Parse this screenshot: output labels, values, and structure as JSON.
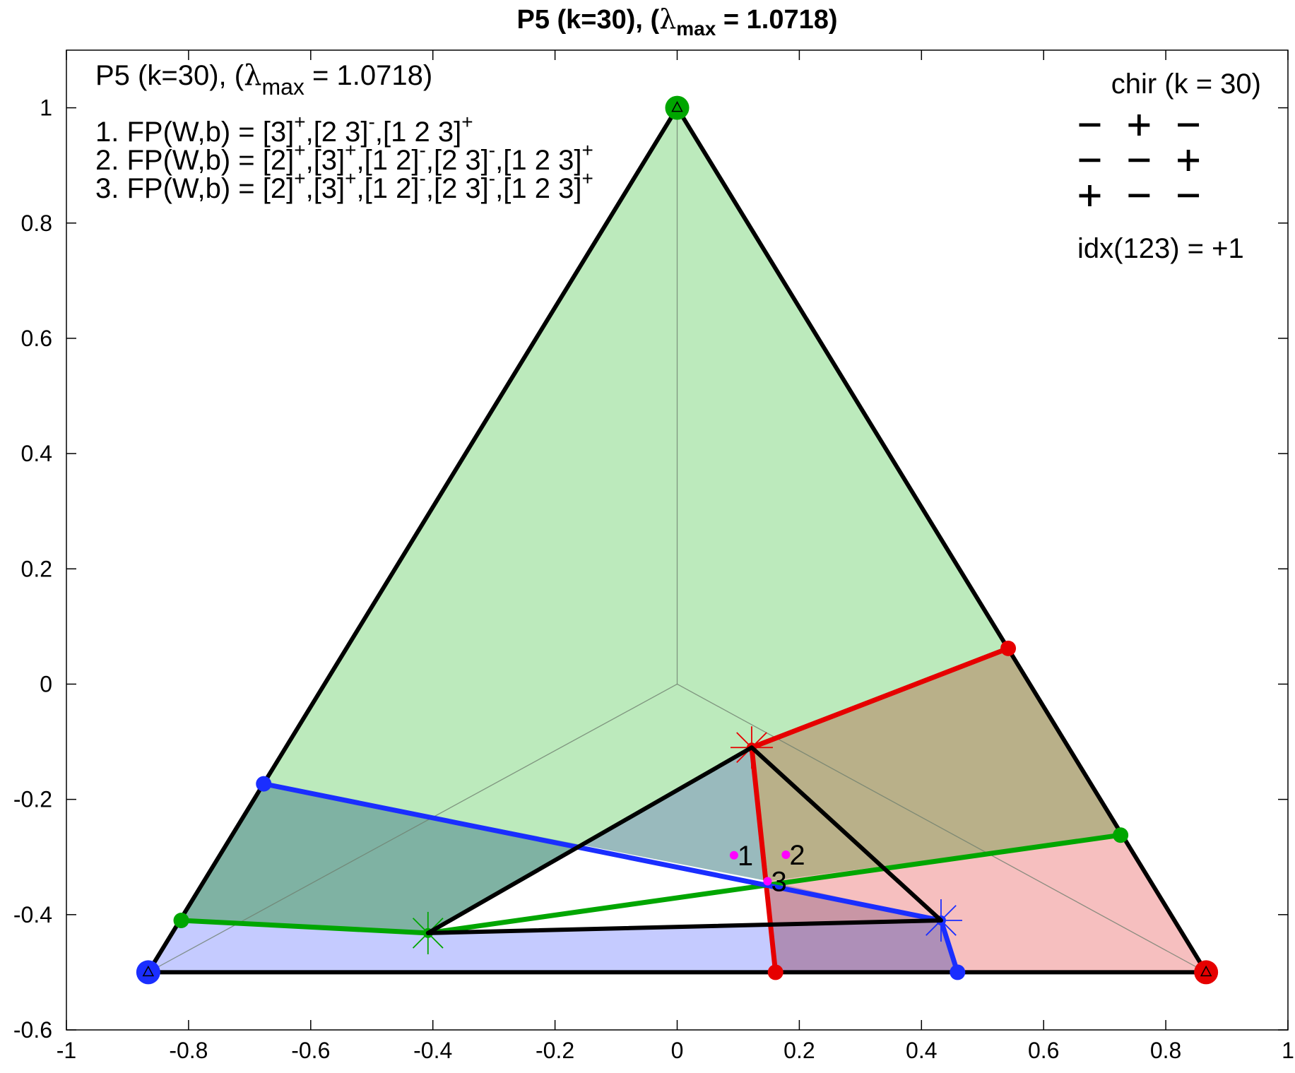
{
  "chart_data": {
    "type": "scatter",
    "title": {
      "main": "P5 (k=30),  (",
      "lambda": "λ",
      "sub": "max",
      "rest": " = 1.0718)"
    },
    "xlabel": "",
    "ylabel": "",
    "xlim": [
      -1,
      1
    ],
    "ylim": [
      -0.6,
      1.1
    ],
    "grid": false,
    "xticks": [
      -1,
      -0.8,
      -0.6,
      -0.4,
      -0.2,
      0,
      0.2,
      0.4,
      0.6,
      0.8,
      1
    ],
    "yticks": [
      -0.6,
      -0.4,
      -0.2,
      0,
      0.2,
      0.4,
      0.6,
      0.8,
      1
    ],
    "xtick_labels": [
      "-1",
      "-0.8",
      "-0.6",
      "-0.4",
      "-0.2",
      "0",
      "0.2",
      "0.4",
      "0.6",
      "0.8",
      "1"
    ],
    "ytick_labels": [
      "-0.6",
      "-0.4",
      "-0.2",
      "0",
      "0.2",
      "0.4",
      "0.6",
      "0.8",
      "1"
    ],
    "simplex_vertices": [
      {
        "x": -0.866,
        "y": -0.5,
        "color": "#1a2eff"
      },
      {
        "x": 0.866,
        "y": -0.5,
        "color": "#e60000"
      },
      {
        "x": 0.0,
        "y": 1.0,
        "color": "#00a600"
      }
    ],
    "regions": [
      {
        "name": "green-region",
        "color": "#7ed67e",
        "opacity": 0.52,
        "points": [
          [
            -0.866,
            -0.5
          ],
          [
            0,
            1
          ],
          [
            0.542,
            0.062
          ],
          [
            0.122,
            -0.11
          ],
          [
            -0.408,
            -0.432
          ],
          [
            -0.812,
            -0.41
          ]
        ]
      },
      {
        "name": "olive-region",
        "color": "#8a7b3a",
        "opacity": 0.6,
        "points": [
          [
            0.122,
            -0.11
          ],
          [
            0.542,
            0.062
          ],
          [
            0.726,
            -0.262
          ],
          [
            0.15,
            -0.342
          ]
        ]
      },
      {
        "name": "pink-region",
        "color": "#ef8a8a",
        "opacity": 0.55,
        "points": [
          [
            0.15,
            -0.342
          ],
          [
            0.726,
            -0.262
          ],
          [
            0.866,
            -0.5
          ],
          [
            0.161,
            -0.5
          ]
        ]
      },
      {
        "name": "teal-region",
        "color": "#5a8f95",
        "opacity": 0.62,
        "points": [
          [
            -0.672,
            -0.173
          ],
          [
            0.15,
            -0.342
          ],
          [
            0.122,
            -0.11
          ],
          [
            -0.408,
            -0.432
          ],
          [
            -0.812,
            -0.41
          ],
          [
            -0.866,
            -0.5
          ],
          [
            -0.73,
            -0.265
          ]
        ]
      },
      {
        "name": "blue-region",
        "color": "#9fa8ff",
        "opacity": 0.6,
        "points": [
          [
            -0.866,
            -0.5
          ],
          [
            -0.812,
            -0.41
          ],
          [
            -0.408,
            -0.432
          ],
          [
            0.432,
            -0.41
          ],
          [
            0.459,
            -0.5
          ]
        ]
      },
      {
        "name": "mauve-region",
        "color": "#9b6e8c",
        "opacity": 0.5,
        "points": [
          [
            0.15,
            -0.342
          ],
          [
            0.432,
            -0.41
          ],
          [
            0.459,
            -0.5
          ],
          [
            0.161,
            -0.5
          ]
        ]
      }
    ],
    "thin_lines": [
      [
        [
          0,
          0
        ],
        [
          0,
          1
        ]
      ],
      [
        [
          0,
          0
        ],
        [
          -0.866,
          -0.5
        ]
      ],
      [
        [
          0,
          0
        ],
        [
          0.866,
          -0.5
        ]
      ]
    ],
    "series": [
      {
        "color": "#e60000",
        "points": [
          [
            0.542,
            0.062
          ],
          [
            0.122,
            -0.11
          ],
          [
            0.161,
            -0.5
          ]
        ],
        "star": [
          0.122,
          -0.11
        ],
        "dots": [
          [
            0.542,
            0.062
          ],
          [
            0.161,
            -0.5
          ]
        ]
      },
      {
        "color": "#00a600",
        "points": [
          [
            -0.812,
            -0.41
          ],
          [
            -0.408,
            -0.432
          ],
          [
            0.726,
            -0.262
          ]
        ],
        "star": [
          -0.408,
          -0.432
        ],
        "dots": [
          [
            -0.812,
            -0.41
          ],
          [
            0.726,
            -0.262
          ]
        ]
      },
      {
        "color": "#1a2eff",
        "points": [
          [
            -0.677,
            -0.173
          ],
          [
            0.432,
            -0.41
          ],
          [
            0.459,
            -0.5
          ]
        ],
        "star": [
          0.432,
          -0.41
        ],
        "dots": [
          [
            -0.677,
            -0.173
          ],
          [
            0.459,
            -0.5
          ]
        ]
      }
    ],
    "inner_triangle": [
      [
        0.122,
        -0.11
      ],
      [
        0.432,
        -0.41
      ],
      [
        -0.408,
        -0.432
      ]
    ],
    "fixed_points": [
      {
        "label": "1",
        "x": 0.093,
        "y": -0.297
      },
      {
        "label": "2",
        "x": 0.178,
        "y": -0.296
      },
      {
        "label": "3",
        "x": 0.148,
        "y": -0.342
      }
    ],
    "annotations": {
      "header_main": "P5 (k=30),  (",
      "header_lambda": "λ",
      "header_sub": "max",
      "header_rest": " = 1.0718)",
      "fp_lines": [
        {
          "prefix": "1. FP(W,b) = ",
          "sets": [
            {
              "s": "[3]",
              "sign": "+"
            },
            {
              "s": "[2  3]",
              "sign": "-"
            },
            {
              "s": "[1  2  3]",
              "sign": "+"
            }
          ]
        },
        {
          "prefix": "2. FP(W,b) = ",
          "sets": [
            {
              "s": "[2]",
              "sign": "+"
            },
            {
              "s": "[3]",
              "sign": "+"
            },
            {
              "s": "[1  2]",
              "sign": "-"
            },
            {
              "s": "[2  3]",
              "sign": "-"
            },
            {
              "s": "[1  2  3]",
              "sign": "+"
            }
          ]
        },
        {
          "prefix": "3. FP(W,b) = ",
          "sets": [
            {
              "s": "[2]",
              "sign": "+"
            },
            {
              "s": "[3]",
              "sign": "+"
            },
            {
              "s": "[1  2]",
              "sign": "-"
            },
            {
              "s": "[2  3]",
              "sign": "-"
            },
            {
              "s": "[1  2  3]",
              "sign": "+"
            }
          ]
        }
      ],
      "chir_title": "chir (k = 30)",
      "chir_rows": [
        "−  +  −",
        "−  −  +",
        "+  −  −"
      ],
      "idx_text": "idx(123) = +1"
    }
  }
}
